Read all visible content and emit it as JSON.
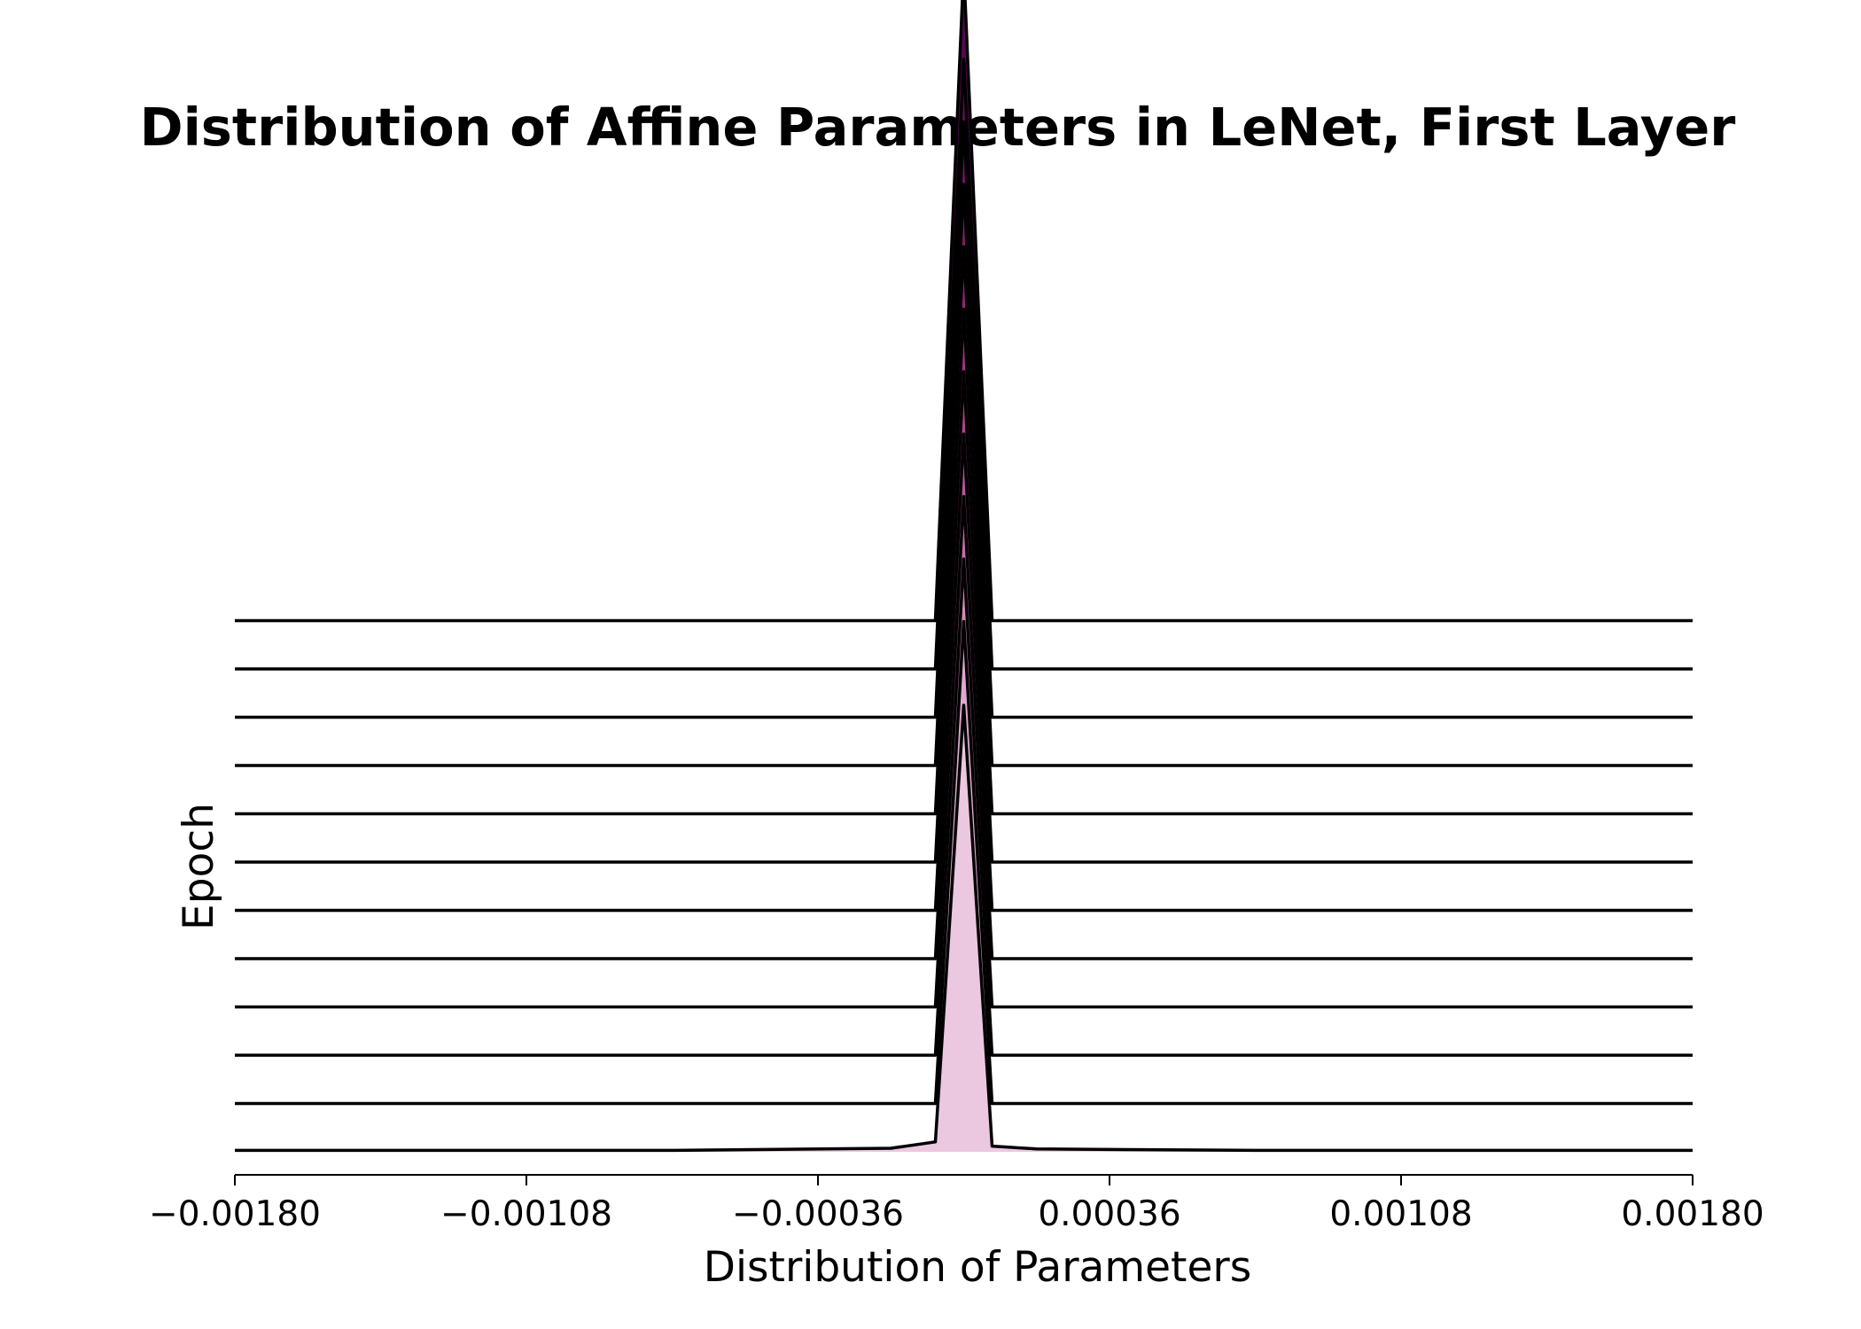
{
  "chart_data": {
    "type": "area",
    "subtype": "ridgeline",
    "title": "Distribution of Affine Parameters in LeNet, First Layer",
    "xlabel": "Distribution of Parameters",
    "ylabel": "Epoch",
    "xlim": [
      -0.0018,
      0.0018
    ],
    "xticks": [
      -0.0018,
      -0.00108,
      -0.00036,
      0.00036,
      0.00108,
      0.0018
    ],
    "xtick_labels": [
      "−0.00180",
      "−0.00108",
      "−0.00036",
      "0.00036",
      "0.00108",
      "0.00180"
    ],
    "grid": false,
    "legend": false,
    "num_ridges": 12,
    "peak_x": 0.0,
    "x": [
      -0.0018,
      -0.00072,
      -0.00018,
      -7e-05,
      0.0,
      7e-05,
      0.00018,
      0.00072,
      0.0018
    ],
    "series": [
      {
        "values": [
          0.02,
          0.02,
          0.05,
          0.14,
          6.3,
          0.08,
          0.04,
          0.02,
          0.02
        ],
        "color": "#ecc7e0"
      },
      {
        "values": [
          0.0,
          0.0,
          0.0,
          0.0,
          6.8,
          0.0,
          0.0,
          0.0,
          0.0
        ],
        "color": "#dea9cd"
      },
      {
        "values": [
          0.0,
          0.0,
          0.0,
          0.0,
          7.0,
          0.0,
          0.0,
          0.0,
          0.0
        ],
        "color": "#d28bbb"
      },
      {
        "values": [
          0.0,
          0.0,
          0.0,
          0.0,
          7.2,
          0.0,
          0.0,
          0.0,
          0.0
        ],
        "color": "#c86dab"
      },
      {
        "values": [
          0.0,
          0.0,
          0.0,
          0.0,
          7.4,
          0.0,
          0.0,
          0.0,
          0.0
        ],
        "color": "#be559d"
      },
      {
        "values": [
          0.0,
          0.0,
          0.0,
          0.0,
          7.6,
          0.0,
          0.0,
          0.0,
          0.0
        ],
        "color": "#b24290"
      },
      {
        "values": [
          0.0,
          0.0,
          0.0,
          0.0,
          7.8,
          0.0,
          0.0,
          0.0,
          0.0
        ],
        "color": "#a43385"
      },
      {
        "values": [
          0.0,
          0.0,
          0.0,
          0.0,
          8.0,
          0.0,
          0.0,
          0.0,
          0.0
        ],
        "color": "#95277a"
      },
      {
        "values": [
          0.0,
          0.0,
          0.0,
          0.0,
          8.2,
          0.0,
          0.0,
          0.0,
          0.0
        ],
        "color": "#861d70"
      },
      {
        "values": [
          0.0,
          0.0,
          0.0,
          0.0,
          8.4,
          0.0,
          0.0,
          0.0,
          0.0
        ],
        "color": "#761566"
      },
      {
        "values": [
          0.0,
          0.0,
          0.0,
          0.0,
          8.6,
          0.0,
          0.0,
          0.0,
          0.0
        ],
        "color": "#660e5b"
      },
      {
        "values": [
          0.0,
          0.0,
          0.0,
          0.0,
          9.2,
          0.0,
          0.0,
          0.0,
          0.0
        ],
        "color": "#560850"
      }
    ]
  }
}
